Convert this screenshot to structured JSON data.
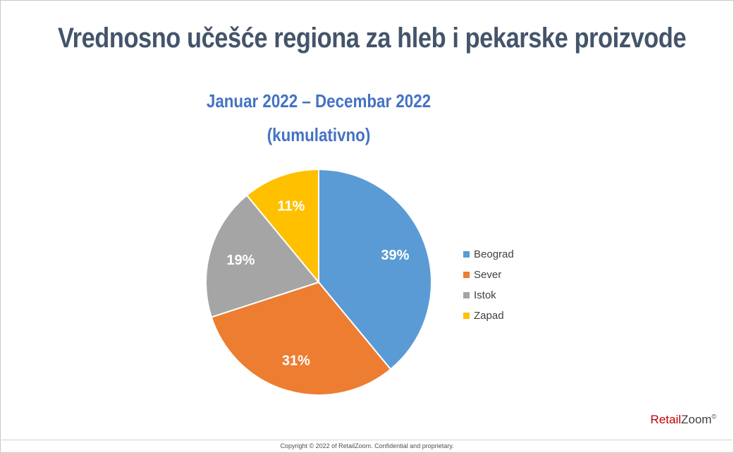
{
  "title": "Vrednosno učešće regiona za hleb i pekarske proizvode",
  "subtitle_line1": "Januar 2022 – Decembar 2022",
  "subtitle_line2": "(kumulativno)",
  "brand": {
    "part1": "Retail",
    "part2": "Zoom",
    "mark": "©"
  },
  "copyright": "Copyright © 2022 of RetailZoom. Confidential and proprietary.",
  "chart_data": {
    "type": "pie",
    "title": "",
    "categories": [
      "Beograd",
      "Sever",
      "Istok",
      "Zapad"
    ],
    "values": [
      39,
      31,
      19,
      11
    ],
    "labels": [
      "39%",
      "31%",
      "19%",
      "11%"
    ],
    "colors": [
      "#5b9bd5",
      "#ed7d31",
      "#a5a5a5",
      "#ffc000"
    ],
    "legend_position": "right"
  }
}
